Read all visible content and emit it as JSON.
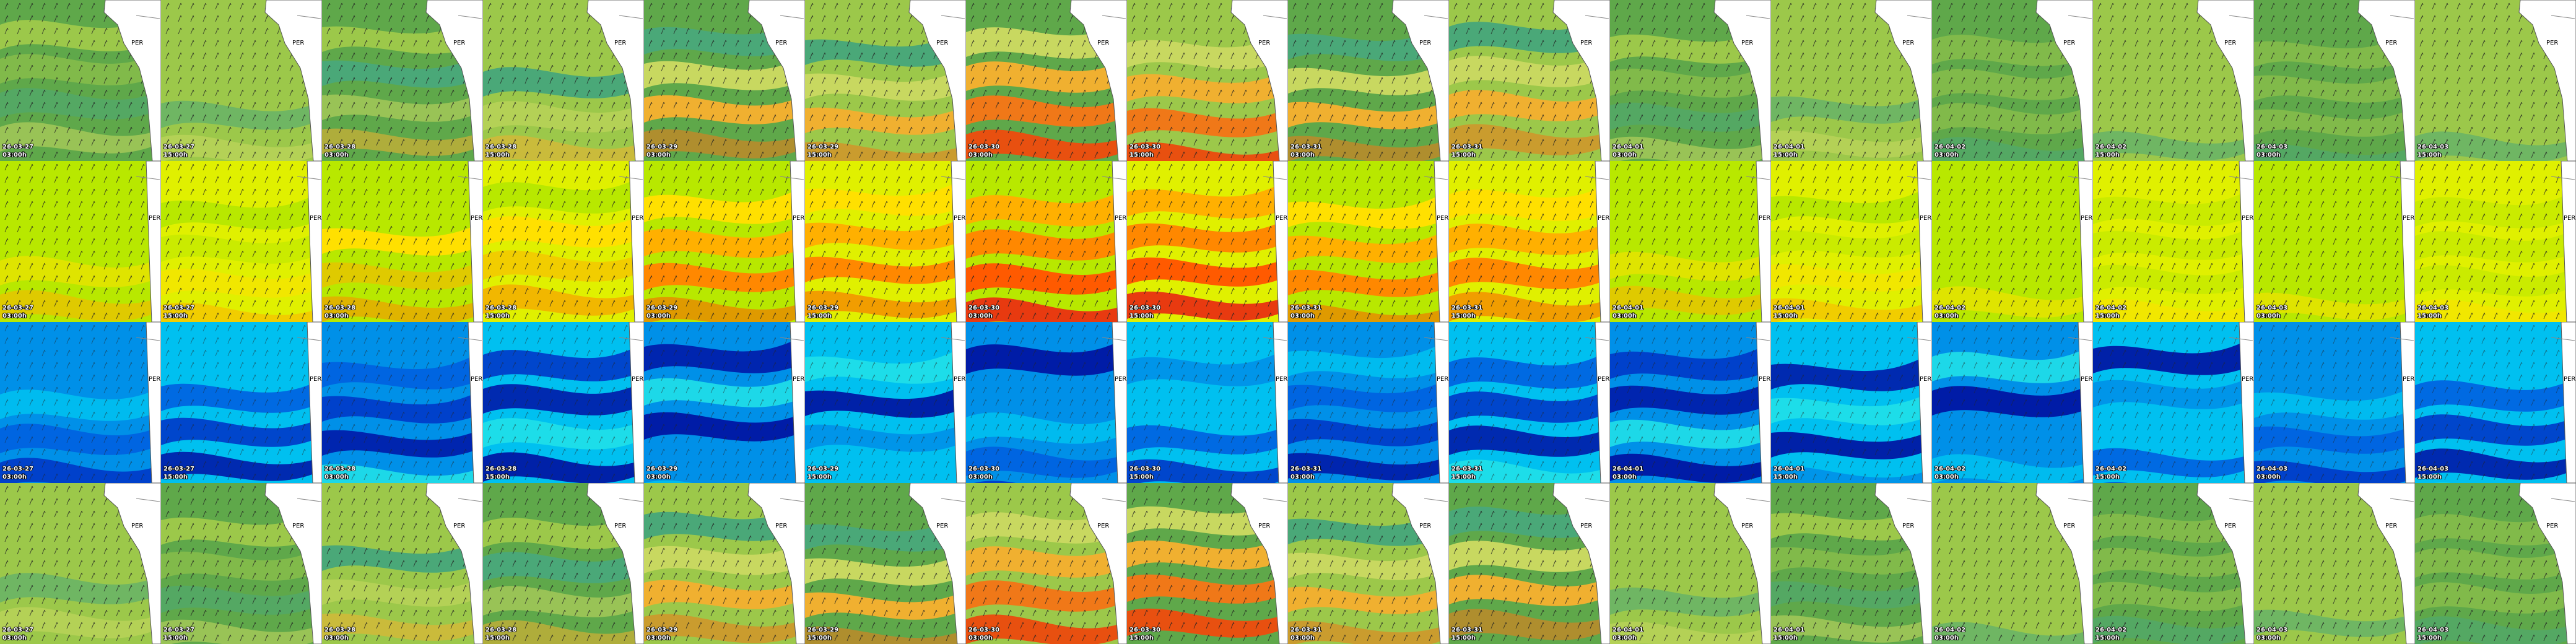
{
  "country": "PER",
  "columns": [
    {
      "date": "26-03-27",
      "time": "03:00h"
    },
    {
      "date": "26-03-27",
      "time": "15:00h"
    },
    {
      "date": "26-03-28",
      "time": "03:00h"
    },
    {
      "date": "26-03-28",
      "time": "15:00h"
    },
    {
      "date": "26-03-29",
      "time": "03:00h"
    },
    {
      "date": "26-03-29",
      "time": "15:00h"
    },
    {
      "date": "26-03-30",
      "time": "03:00h"
    },
    {
      "date": "26-03-30",
      "time": "15:00h"
    },
    {
      "date": "26-03-31",
      "time": "03:00h"
    },
    {
      "date": "26-03-31",
      "time": "15:00h"
    },
    {
      "date": "26-04-01",
      "time": "03:00h"
    },
    {
      "date": "26-04-01",
      "time": "15:00h"
    },
    {
      "date": "26-04-02",
      "time": "03:00h"
    },
    {
      "date": "26-04-02",
      "time": "15:00h"
    },
    {
      "date": "26-04-03",
      "time": "03:00h"
    },
    {
      "date": "26-04-03",
      "time": "15:00h"
    }
  ]
}
